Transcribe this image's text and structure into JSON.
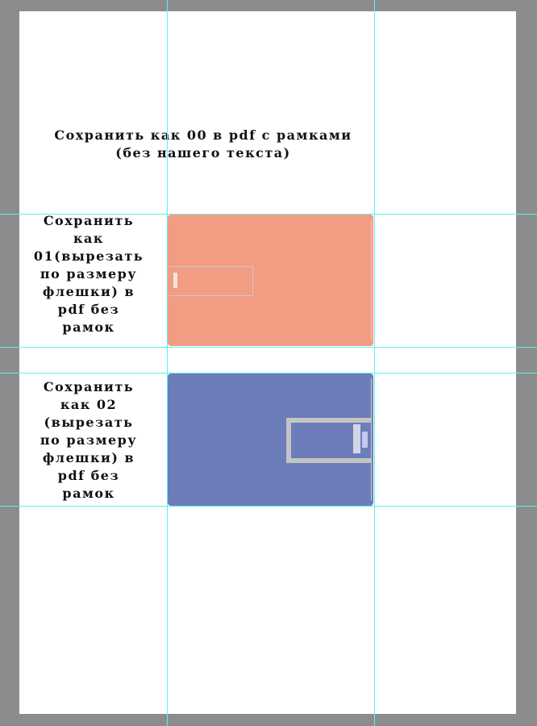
{
  "canvas": {
    "heading": "Сохранить как 00 в pdf   с рамками\n(без нашего текста)",
    "label_01": "Сохранить\nкак\n01(вырезать\nпо размеру\nфлешки) в\npdf   без\nрамок",
    "label_02": "Сохранить\nкак 02\n(вырезать\nпо размеру\nфлешки) в\npdf  без\nрамок"
  },
  "colors": {
    "card_01": "#f29c84",
    "card_02": "#6c7dba",
    "guides": "#5ff0f0",
    "workspace": "#8c8c8c"
  }
}
